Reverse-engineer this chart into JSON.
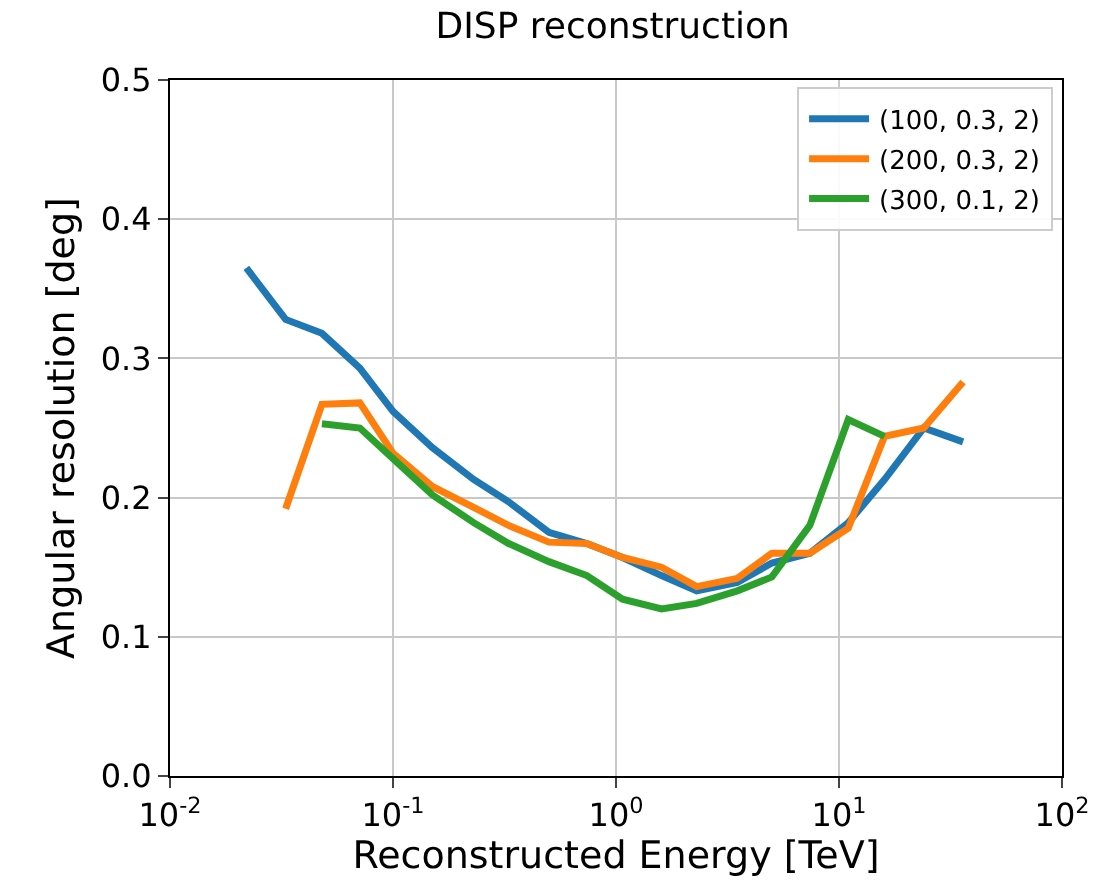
{
  "chart_data": {
    "type": "line",
    "title": "DISP reconstruction",
    "xlabel": "Reconstructed Energy [TeV]",
    "ylabel": "Angular resolution [deg]",
    "log": "x",
    "xlim": [
      0.01,
      100
    ],
    "xticks": [
      {
        "value": 0.01,
        "label": "10$^{-2}$"
      },
      {
        "value": 0.1,
        "label": "10$^{-1}$"
      },
      {
        "value": 1,
        "label": "10$^{0}$"
      },
      {
        "value": 10,
        "label": "10$^{1}$"
      },
      {
        "value": 100,
        "label": "10$^{2}$"
      }
    ],
    "ylim": [
      0,
      0.5
    ],
    "yticks": [
      {
        "value": 0,
        "label": "0.0"
      },
      0.1,
      0.2,
      0.3,
      0.4,
      {
        "value": 0.5,
        "label": "0.5"
      }
    ],
    "grid": true,
    "legend": "top right",
    "line_style": "solid",
    "marker": "none",
    "x": [
      0.022,
      0.033,
      0.048,
      0.071,
      0.1,
      0.15,
      0.23,
      0.33,
      0.5,
      0.74,
      1.07,
      1.6,
      2.3,
      3.5,
      5,
      7.4,
      11,
      16,
      24,
      36
    ],
    "series": [
      {
        "name": "(100, 0.3, 2)",
        "color": "#1f77b4",
        "values": [
          0.365,
          0.328,
          0.318,
          0.293,
          0.262,
          0.236,
          0.213,
          0.197,
          0.175,
          0.167,
          0.157,
          0.144,
          0.133,
          0.139,
          0.153,
          0.16,
          0.182,
          0.213,
          0.25,
          0.24
        ]
      },
      {
        "name": "(200, 0.3, 2)",
        "color": "#ff7f0e",
        "values": [
          null,
          0.192,
          0.267,
          0.268,
          0.232,
          0.208,
          0.193,
          0.18,
          0.168,
          0.167,
          0.157,
          0.15,
          0.136,
          0.142,
          0.16,
          0.16,
          0.178,
          0.244,
          0.25,
          0.283
        ]
      },
      {
        "name": "(300, 0.1, 2)",
        "color": "#2ca02c",
        "values": [
          null,
          null,
          0.253,
          0.25,
          0.228,
          0.202,
          0.182,
          0.167,
          0.154,
          0.144,
          0.127,
          0.12,
          0.124,
          0.133,
          0.143,
          0.18,
          0.256,
          0.244,
          null,
          null
        ]
      }
    ]
  }
}
